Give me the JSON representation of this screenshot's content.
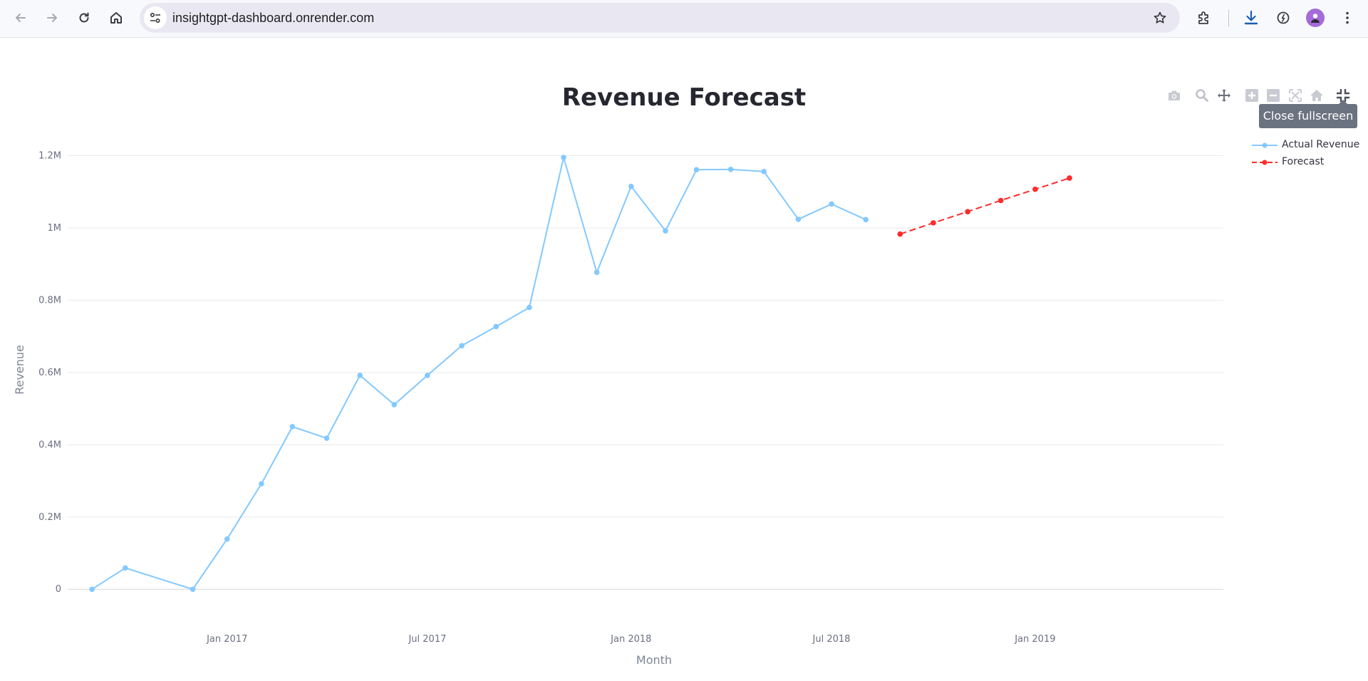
{
  "browser": {
    "url": "insightgpt-dashboard.onrender.com",
    "icons": {
      "back": "arrow-left-icon",
      "forward": "arrow-right-icon",
      "reload": "reload-icon",
      "home": "home-icon",
      "site_info": "tune-icon",
      "bookmark": "star-icon",
      "extensions": "puzzle-icon",
      "downloads": "download-icon",
      "performance": "speedometer-icon",
      "profile": "avatar-icon",
      "menu": "kebab-menu-icon"
    }
  },
  "modebar": {
    "tooltip": "Close fullscreen",
    "buttons": [
      "camera-icon",
      "zoom-icon",
      "pan-icon",
      "zoom-in-icon",
      "zoom-out-icon",
      "autoscale-icon",
      "reset-axes-icon",
      "fullscreen-exit-icon"
    ]
  },
  "chart_data": {
    "type": "line",
    "title": "Revenue Forecast",
    "xlabel": "Month",
    "ylabel": "Revenue",
    "x_tick_labels": [
      "Jan 2017",
      "Jul 2017",
      "Jan 2018",
      "Jul 2018",
      "Jan 2019"
    ],
    "y_tick_labels": [
      "0",
      "0.2M",
      "0.4M",
      "0.6M",
      "0.8M",
      "1M",
      "1.2M"
    ],
    "y_ticks": [
      0,
      200000,
      400000,
      600000,
      800000,
      1000000,
      1200000
    ],
    "ylim": [
      -35000,
      1270000
    ],
    "xlim": [
      "2016-08-10",
      "2019-06-20"
    ],
    "grid": true,
    "legend_position": "top-right",
    "series": [
      {
        "name": "Actual Revenue",
        "color": "#83c9ff",
        "dash": "solid",
        "x": [
          "2016-09-01",
          "2016-10-01",
          "2016-12-01",
          "2017-01-01",
          "2017-02-01",
          "2017-03-01",
          "2017-04-01",
          "2017-05-01",
          "2017-06-01",
          "2017-07-01",
          "2017-08-01",
          "2017-09-01",
          "2017-10-01",
          "2017-11-01",
          "2017-12-01",
          "2018-01-01",
          "2018-02-01",
          "2018-03-01",
          "2018-04-01",
          "2018-05-01",
          "2018-06-01",
          "2018-07-01",
          "2018-08-01"
        ],
        "y": [
          0,
          59000,
          0,
          139000,
          292000,
          450000,
          418000,
          592000,
          511000,
          592000,
          674000,
          727000,
          780000,
          1195000,
          877000,
          1115000,
          992000,
          1161000,
          1162000,
          1156000,
          1024000,
          1066000,
          1023000
        ]
      },
      {
        "name": "Forecast",
        "color": "#ff2b2b",
        "dash": "dash",
        "x": [
          "2018-09-01",
          "2018-10-01",
          "2018-11-01",
          "2018-12-01",
          "2019-01-01",
          "2019-02-01"
        ],
        "y": [
          983000,
          1014000,
          1045000,
          1076000,
          1107000,
          1138000
        ]
      }
    ]
  }
}
